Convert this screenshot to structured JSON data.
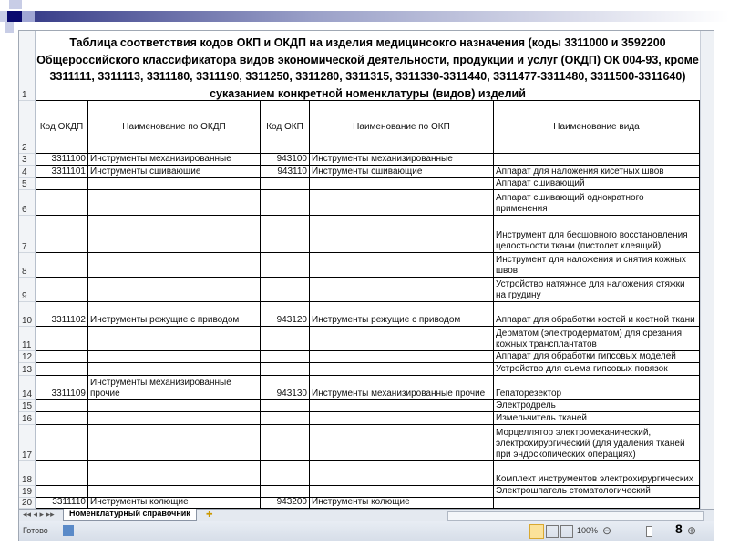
{
  "title": "Таблица соответствия кодов ОКП и ОКДП на изделия медицинсокго назначения (коды 3311000 и 3592200 Общероссийского классификатора видов экономической деятельности, продукции и услуг (ОКДП) ОК 004-93, кроме 3311111, 3311113, 3311180, 3311190, 3311250, 3311280, 3311315, 3311330-3311440, 3311477-3311480, 3311500-3311640) сукaзанием конкретной номенклатуры (видов) изделий",
  "headers": [
    "Код ОКДП",
    "Наименование по ОКДП",
    "Код ОКП",
    "Наименование по ОКП",
    "Наименование вида"
  ],
  "rows": [
    {
      "n": "3",
      "c": [
        "3311100",
        "Инструменты механизированные",
        "943100",
        "Инструменты механизированные",
        ""
      ]
    },
    {
      "n": "4",
      "c": [
        "3311101",
        "Инструменты сшивающие",
        "943110",
        "Инструменты сшивающие",
        "Аппарат для наложения кисетных швов"
      ]
    },
    {
      "n": "5",
      "c": [
        "",
        "",
        "",
        "",
        "Аппарат сшивающий"
      ]
    },
    {
      "n": "6",
      "c": [
        "",
        "",
        "",
        "",
        "Аппарат сшивающий однократного применения"
      ]
    },
    {
      "n": "7",
      "c": [
        "",
        "",
        "",
        "",
        "Инструмент для бесшовного восстановления целостности ткани (пистолет клеящий)"
      ]
    },
    {
      "n": "8",
      "c": [
        "",
        "",
        "",
        "",
        "Инструмент для наложения и снятия кожных швов"
      ]
    },
    {
      "n": "9",
      "c": [
        "",
        "",
        "",
        "",
        "Устройство натяжное для наложения стяжки на грудину"
      ]
    },
    {
      "n": "10",
      "c": [
        "3311102",
        "Инструменты режущие с приводом",
        "943120",
        "Инструменты режущие с приводом",
        "Аппарат для обработки костей и костной ткани"
      ]
    },
    {
      "n": "11",
      "c": [
        "",
        "",
        "",
        "",
        "Дерматом (электродерматом) для срезания кожных трансплантатов"
      ]
    },
    {
      "n": "12",
      "c": [
        "",
        "",
        "",
        "",
        "Аппарат для обработки гипсовых моделей"
      ]
    },
    {
      "n": "13",
      "c": [
        "",
        "",
        "",
        "",
        "Устройство для съема гипсовых повязок"
      ]
    },
    {
      "n": "14",
      "c": [
        "3311109",
        "Инструменты механизированные прочие",
        "943130",
        "Инструменты механизированные прочие",
        "Гепаторезектор"
      ]
    },
    {
      "n": "15",
      "c": [
        "",
        "",
        "",
        "",
        "Электродрель"
      ]
    },
    {
      "n": "16",
      "c": [
        "",
        "",
        "",
        "",
        "Измельчитель тканей"
      ]
    },
    {
      "n": "17",
      "c": [
        "",
        "",
        "",
        "",
        "Морцеллятор электромеханический, электрохирургический (для удаления тканей при эндоскопических операциях)"
      ]
    },
    {
      "n": "18",
      "c": [
        "",
        "",
        "",
        "",
        "Комплект инструментов электрохирургических"
      ]
    },
    {
      "n": "19",
      "c": [
        "",
        "",
        "",
        "",
        "Электрошпатель стоматологический"
      ]
    },
    {
      "n": "20",
      "c": [
        "3311110",
        "Инструменты колющие",
        "943200",
        "Инструменты колющие",
        ""
      ]
    }
  ],
  "row1_num": "1",
  "row2_num": "2",
  "sheet_tab": "Номенклатурный справочник",
  "status": {
    "ready": "Готово",
    "zoom": "100%",
    "page_number": "8"
  }
}
